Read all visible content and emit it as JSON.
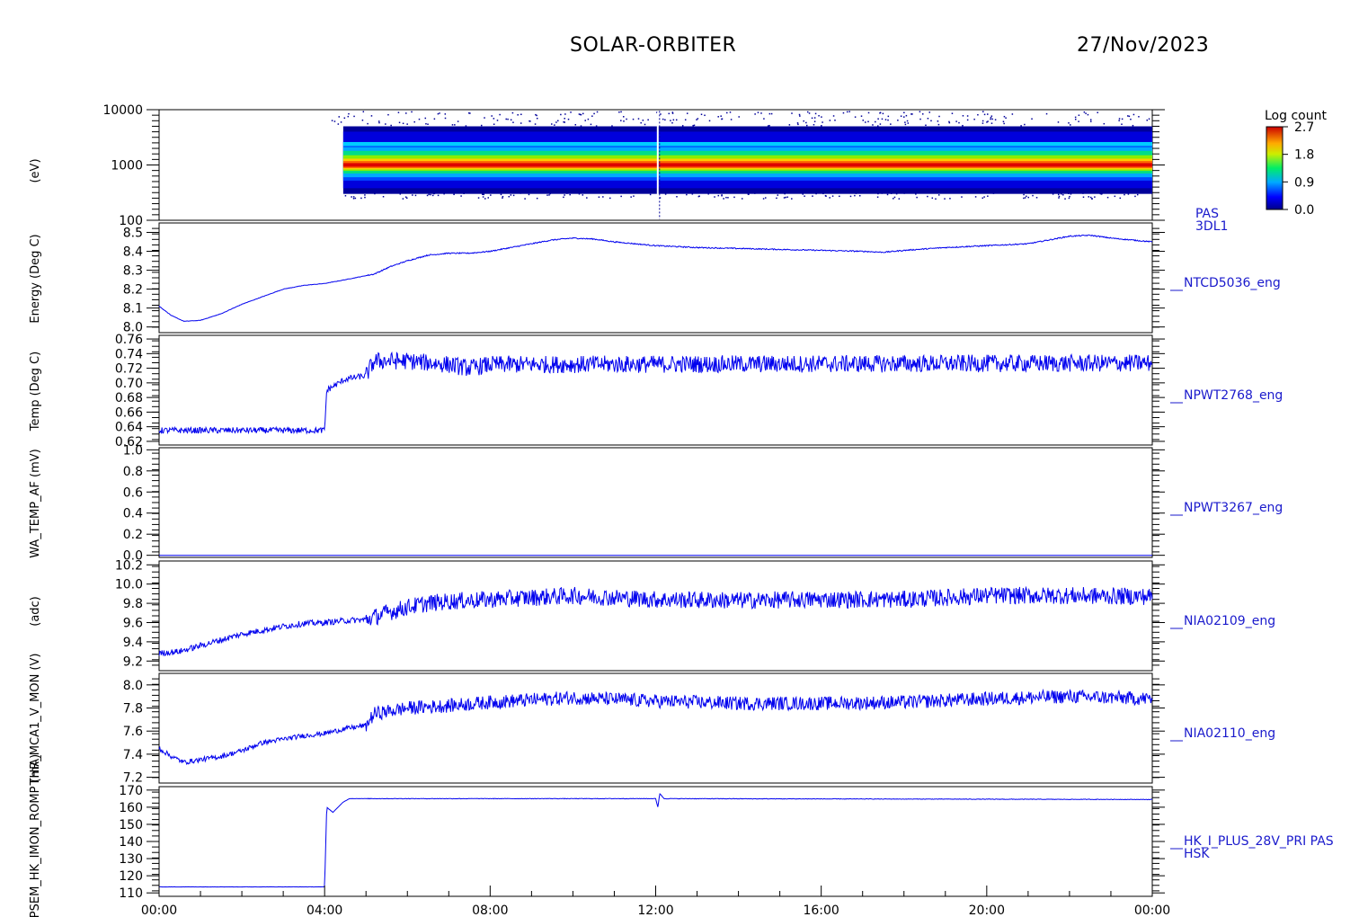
{
  "header": {
    "title": "SOLAR-ORBITER",
    "date": "27/Nov/2023"
  },
  "colors": {
    "series_line": "#0000ee",
    "axis": "#000000",
    "panel_label": "#1a1acc"
  },
  "y_axis_labels": [
    "(eV)",
    "Energy (Deg C)",
    "Temp (Deg C)",
    "WA_TEMP_AF (mV)",
    "(adc)",
    "THR_MCA1_V_MON (V)",
    "PSEM_HK_IMON_ROMP (mA)"
  ],
  "chart_data": [
    {
      "type": "heatmap",
      "name": "PAS 3DL1",
      "label_lines": [
        "PAS",
        "3DL1"
      ],
      "yscale": "log",
      "ylim": [
        100,
        10000
      ],
      "yticks": [
        {
          "v": 10000,
          "t": "10000"
        },
        {
          "v": 1000,
          "t": "1000"
        },
        {
          "v": 100,
          "t": "100"
        }
      ],
      "x_start_hours": 4.45,
      "x_end_hours": 24.0,
      "gap_hours": 12.05,
      "colorbar": {
        "title": "Log count",
        "ticks": [
          "2.7",
          "1.8",
          "0.9",
          "0.0"
        ],
        "range": [
          0.0,
          2.7
        ]
      }
    },
    {
      "type": "line",
      "name": "NTCD5036_eng",
      "ylim": [
        7.97,
        8.55
      ],
      "yticks": [
        {
          "v": 8.0,
          "t": "8.0"
        },
        {
          "v": 8.1,
          "t": "8.1"
        },
        {
          "v": 8.2,
          "t": "8.2"
        },
        {
          "v": 8.3,
          "t": "8.3"
        },
        {
          "v": 8.4,
          "t": "8.4"
        },
        {
          "v": 8.5,
          "t": "8.5"
        }
      ],
      "noise": 0.003,
      "points": [
        [
          0,
          8.11
        ],
        [
          0.3,
          8.06
        ],
        [
          0.6,
          8.03
        ],
        [
          1.0,
          8.035
        ],
        [
          1.5,
          8.07
        ],
        [
          2.0,
          8.12
        ],
        [
          2.5,
          8.16
        ],
        [
          3.0,
          8.2
        ],
        [
          3.5,
          8.22
        ],
        [
          4.0,
          8.23
        ],
        [
          4.5,
          8.25
        ],
        [
          5.2,
          8.28
        ],
        [
          5.6,
          8.32
        ],
        [
          6.0,
          8.35
        ],
        [
          6.5,
          8.38
        ],
        [
          7.0,
          8.39
        ],
        [
          7.5,
          8.39
        ],
        [
          8.0,
          8.4
        ],
        [
          8.5,
          8.42
        ],
        [
          9.0,
          8.44
        ],
        [
          9.5,
          8.46
        ],
        [
          10.0,
          8.47
        ],
        [
          10.5,
          8.465
        ],
        [
          11.0,
          8.45
        ],
        [
          12.0,
          8.43
        ],
        [
          13.0,
          8.42
        ],
        [
          14.0,
          8.415
        ],
        [
          15.0,
          8.41
        ],
        [
          16.0,
          8.405
        ],
        [
          17.0,
          8.4
        ],
        [
          17.5,
          8.395
        ],
        [
          18.0,
          8.405
        ],
        [
          19.0,
          8.42
        ],
        [
          20.0,
          8.43
        ],
        [
          21.0,
          8.44
        ],
        [
          22.0,
          8.48
        ],
        [
          22.5,
          8.485
        ],
        [
          23.0,
          8.47
        ],
        [
          23.5,
          8.46
        ],
        [
          24.0,
          8.45
        ]
      ]
    },
    {
      "type": "line",
      "name": "NPWT2768_eng",
      "ylim": [
        0.615,
        0.765
      ],
      "yticks": [
        {
          "v": 0.62,
          "t": "0.62"
        },
        {
          "v": 0.64,
          "t": "0.64"
        },
        {
          "v": 0.66,
          "t": "0.66"
        },
        {
          "v": 0.68,
          "t": "0.68"
        },
        {
          "v": 0.7,
          "t": "0.70"
        },
        {
          "v": 0.72,
          "t": "0.72"
        },
        {
          "v": 0.74,
          "t": "0.74"
        },
        {
          "v": 0.76,
          "t": "0.76"
        }
      ],
      "noise": 0.012,
      "points": [
        [
          0,
          0.635
        ],
        [
          4.0,
          0.635
        ],
        [
          4.05,
          0.69
        ],
        [
          4.5,
          0.705
        ],
        [
          5.0,
          0.71
        ],
        [
          5.2,
          0.73
        ],
        [
          6.0,
          0.73
        ],
        [
          7.0,
          0.725
        ],
        [
          7.5,
          0.72
        ],
        [
          8.0,
          0.725
        ],
        [
          24.0,
          0.727
        ]
      ]
    },
    {
      "type": "line",
      "name": "NPWT3267_eng",
      "ylim": [
        -0.02,
        1.02
      ],
      "yticks": [
        {
          "v": 0.0,
          "t": "0.0"
        },
        {
          "v": 0.2,
          "t": "0.2"
        },
        {
          "v": 0.4,
          "t": "0.4"
        },
        {
          "v": 0.6,
          "t": "0.6"
        },
        {
          "v": 0.8,
          "t": "0.8"
        },
        {
          "v": 1.0,
          "t": "1.0"
        }
      ],
      "noise": 0.0,
      "points": [
        [
          0,
          0.0
        ],
        [
          24.0,
          0.0
        ]
      ]
    },
    {
      "type": "line",
      "name": "NIA02109_eng",
      "ylim": [
        9.1,
        10.24
      ],
      "yticks": [
        {
          "v": 9.2,
          "t": "9.2"
        },
        {
          "v": 9.4,
          "t": "9.4"
        },
        {
          "v": 9.6,
          "t": "9.6"
        },
        {
          "v": 9.8,
          "t": "9.8"
        },
        {
          "v": 10.0,
          "t": "10.0"
        },
        {
          "v": 10.2,
          "t": "10.2"
        }
      ],
      "noise": 0.09,
      "points": [
        [
          0,
          9.28
        ],
        [
          0.5,
          9.3
        ],
        [
          1.0,
          9.36
        ],
        [
          1.5,
          9.42
        ],
        [
          2.0,
          9.48
        ],
        [
          2.5,
          9.52
        ],
        [
          3.0,
          9.56
        ],
        [
          3.5,
          9.59
        ],
        [
          4.0,
          9.6
        ],
        [
          4.5,
          9.62
        ],
        [
          5.0,
          9.63
        ],
        [
          5.5,
          9.7
        ],
        [
          6.0,
          9.76
        ],
        [
          6.5,
          9.8
        ],
        [
          7.0,
          9.82
        ],
        [
          8.0,
          9.84
        ],
        [
          9.0,
          9.86
        ],
        [
          10.0,
          9.88
        ],
        [
          12.0,
          9.84
        ],
        [
          14.0,
          9.83
        ],
        [
          16.0,
          9.84
        ],
        [
          18.0,
          9.84
        ],
        [
          20.0,
          9.88
        ],
        [
          22.0,
          9.88
        ],
        [
          24.0,
          9.87
        ]
      ]
    },
    {
      "type": "line",
      "name": "NIA02110_eng",
      "ylim": [
        7.15,
        8.1
      ],
      "yticks": [
        {
          "v": 7.2,
          "t": "7.2"
        },
        {
          "v": 7.4,
          "t": "7.4"
        },
        {
          "v": 7.6,
          "t": "7.6"
        },
        {
          "v": 7.8,
          "t": "7.8"
        },
        {
          "v": 8.0,
          "t": "8.0"
        }
      ],
      "noise": 0.06,
      "points": [
        [
          0,
          7.45
        ],
        [
          0.3,
          7.38
        ],
        [
          0.6,
          7.33
        ],
        [
          1.5,
          7.38
        ],
        [
          2.0,
          7.43
        ],
        [
          2.5,
          7.5
        ],
        [
          3.0,
          7.53
        ],
        [
          3.5,
          7.56
        ],
        [
          4.0,
          7.58
        ],
        [
          4.5,
          7.62
        ],
        [
          5.0,
          7.65
        ],
        [
          5.2,
          7.75
        ],
        [
          6.0,
          7.8
        ],
        [
          7.0,
          7.82
        ],
        [
          8.0,
          7.85
        ],
        [
          9.0,
          7.87
        ],
        [
          10.0,
          7.89
        ],
        [
          12.0,
          7.86
        ],
        [
          14.0,
          7.84
        ],
        [
          16.0,
          7.84
        ],
        [
          18.0,
          7.85
        ],
        [
          20.0,
          7.88
        ],
        [
          22.0,
          7.9
        ],
        [
          24.0,
          7.88
        ]
      ]
    },
    {
      "type": "line",
      "name": "HK_I_PLUS_28V_PRI PAS HSK",
      "label_lines": [
        "HK_I_PLUS_28V_PRI PAS",
        "HSK"
      ],
      "ylim": [
        108,
        172
      ],
      "yticks": [
        {
          "v": 110,
          "t": "110"
        },
        {
          "v": 120,
          "t": "120"
        },
        {
          "v": 130,
          "t": "130"
        },
        {
          "v": 140,
          "t": "140"
        },
        {
          "v": 150,
          "t": "150"
        },
        {
          "v": 160,
          "t": "160"
        },
        {
          "v": 170,
          "t": "170"
        }
      ],
      "noise": 0.15,
      "points": [
        [
          0,
          113.5
        ],
        [
          4.0,
          113.5
        ],
        [
          4.05,
          160
        ],
        [
          4.2,
          157
        ],
        [
          4.45,
          163
        ],
        [
          4.6,
          165
        ],
        [
          12.0,
          165
        ],
        [
          12.05,
          160
        ],
        [
          12.1,
          168
        ],
        [
          12.2,
          165
        ],
        [
          24.0,
          164.5
        ]
      ]
    }
  ],
  "x_axis": {
    "ticks": [
      "00:00",
      "04:00",
      "08:00",
      "12:00",
      "16:00",
      "20:00",
      "00:00"
    ],
    "range_hours": [
      0,
      24
    ]
  }
}
